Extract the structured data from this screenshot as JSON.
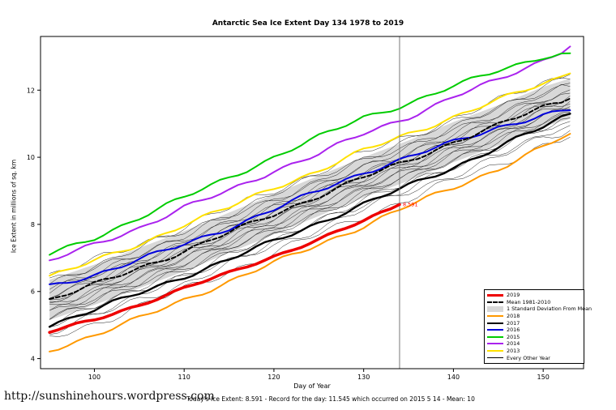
{
  "page": {
    "url": "http://sunshinehours.wordpress.com",
    "footer": "Today's Ice Extent: 8.591 - Record for the day: 11.545 which occurred on 2015 5 14 - Mean: 10"
  },
  "chart_data": {
    "type": "line",
    "title": "Antarctic Sea Ice Extent Day 134 1978 to 2019",
    "xlabel": "Day of Year",
    "ylabel": "Ice Extent in millions of sq. km",
    "xlim": [
      94,
      154.5
    ],
    "ylim": [
      3.7,
      13.6
    ],
    "xticks": [
      100,
      110,
      120,
      130,
      140,
      150
    ],
    "yticks": [
      4,
      6,
      8,
      10,
      12
    ],
    "grid": false,
    "marker_day": 134,
    "annotation": {
      "x": 134,
      "y": 8.591,
      "label": "8.591",
      "color": "#ff0000"
    },
    "x": [
      95,
      100,
      105,
      110,
      115,
      120,
      125,
      130,
      135,
      140,
      145,
      150,
      153
    ],
    "series": [
      {
        "name": "2013",
        "color": "#ffe100",
        "width": 2,
        "values": [
          6.45,
          6.9,
          7.4,
          8.0,
          8.5,
          9.1,
          9.6,
          10.2,
          10.7,
          11.2,
          11.7,
          12.2,
          12.5
        ]
      },
      {
        "name": "2014",
        "color": "#aa22ee",
        "width": 2,
        "values": [
          6.9,
          7.4,
          7.9,
          8.5,
          9.0,
          9.6,
          10.1,
          10.7,
          11.2,
          11.8,
          12.3,
          12.9,
          13.3
        ]
      },
      {
        "name": "2015",
        "color": "#00cc00",
        "width": 2,
        "values": [
          7.1,
          7.6,
          8.2,
          8.8,
          9.4,
          10.0,
          10.6,
          11.2,
          11.6,
          12.1,
          12.6,
          13.0,
          13.1
        ]
      },
      {
        "name": "2016",
        "color": "#0000dd",
        "width": 2,
        "values": [
          6.15,
          6.5,
          6.95,
          7.4,
          7.9,
          8.45,
          9.0,
          9.55,
          10.0,
          10.45,
          10.9,
          11.25,
          11.4
        ]
      },
      {
        "name": "2018",
        "color": "#ff9900",
        "width": 2,
        "values": [
          4.25,
          4.7,
          5.2,
          5.75,
          6.3,
          6.85,
          7.4,
          7.95,
          8.55,
          9.1,
          9.65,
          10.3,
          10.7
        ]
      },
      {
        "name": "2017",
        "color": "#000000",
        "width": 2.4,
        "values": [
          5.0,
          5.45,
          5.95,
          6.45,
          6.95,
          7.5,
          8.05,
          8.6,
          9.15,
          9.7,
          10.3,
          10.9,
          11.3
        ]
      },
      {
        "name": "Mean 1981-2010",
        "color": "#000000",
        "width": 2,
        "dash": "5,3",
        "values": [
          5.75,
          6.2,
          6.7,
          7.2,
          7.75,
          8.3,
          8.85,
          9.4,
          9.9,
          10.45,
          10.95,
          11.5,
          11.75
        ]
      },
      {
        "name": "2019",
        "color": "#ee0000",
        "width": 3.5,
        "x": [
          95,
          100,
          105,
          110,
          115,
          120,
          125,
          130,
          134
        ],
        "values": [
          4.8,
          5.15,
          5.6,
          6.1,
          6.55,
          7.05,
          7.55,
          8.1,
          8.591
        ]
      }
    ],
    "band": {
      "name": "1 Standard Deviation From Mean",
      "around": "Mean 1981-2010",
      "delta": 0.6,
      "color": "#d8d8d8"
    },
    "every_other_year": {
      "label": "Every Other Year",
      "color": "#222222",
      "width": 0.5,
      "offsets": [
        -1.15,
        -0.95,
        -0.8,
        -0.68,
        -0.58,
        -0.48,
        -0.4,
        -0.32,
        -0.24,
        -0.16,
        -0.08,
        0.0,
        0.08,
        0.16,
        0.26,
        0.36,
        0.46,
        0.58,
        0.72
      ]
    },
    "legend": {
      "position": "bottom-right",
      "items": [
        {
          "label": "2019",
          "color": "#ee0000",
          "lw": 3.5,
          "style": "solid"
        },
        {
          "label": "Mean 1981-2010",
          "color": "#000000",
          "lw": 2,
          "style": "dashed"
        },
        {
          "label": "1 Standard Deviation From Mean",
          "color": "#d8d8d8",
          "style": "band"
        },
        {
          "label": "2018",
          "color": "#ff9900",
          "lw": 2,
          "style": "solid"
        },
        {
          "label": "2017",
          "color": "#000000",
          "lw": 2,
          "style": "solid"
        },
        {
          "label": "2016",
          "color": "#0000dd",
          "lw": 2,
          "style": "solid"
        },
        {
          "label": "2015",
          "color": "#00cc00",
          "lw": 2,
          "style": "solid"
        },
        {
          "label": "2014",
          "color": "#aa22ee",
          "lw": 2,
          "style": "solid"
        },
        {
          "label": "2013",
          "color": "#ffe100",
          "lw": 2,
          "style": "solid"
        },
        {
          "label": "Every Other Year",
          "color": "#000000",
          "lw": 0.7,
          "style": "solid"
        }
      ]
    }
  }
}
